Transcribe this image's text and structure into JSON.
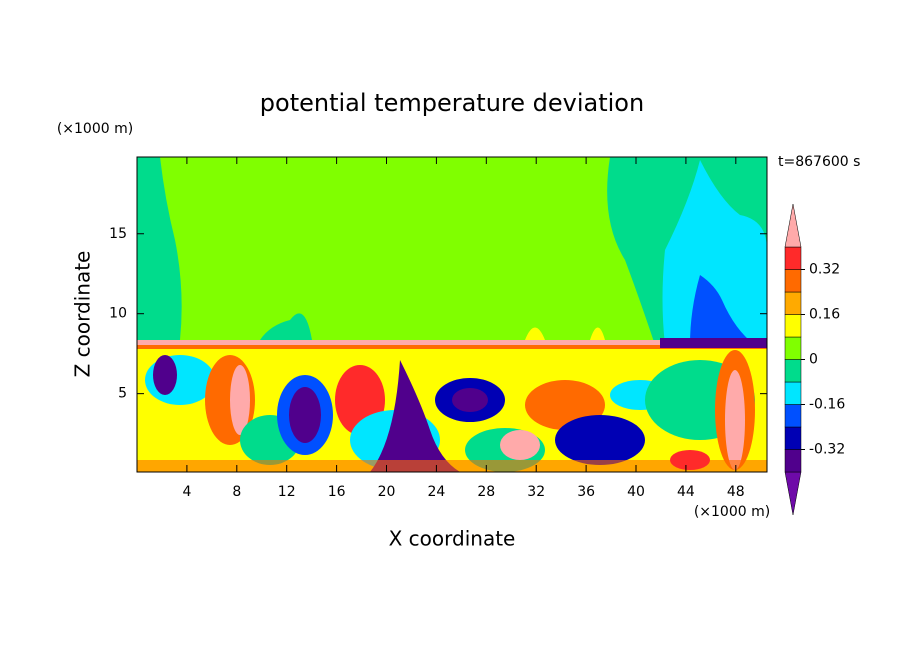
{
  "chart_data": {
    "type": "contour",
    "title": "potential temperature deviation",
    "x_label": "X coordinate",
    "y_label": "Z coordinate",
    "x_unit": "(×1000 m)",
    "y_unit": "(×1000 m)",
    "annotation": "t=867600 s",
    "xlim": [
      0,
      50.5
    ],
    "ylim": [
      0.1,
      19.8
    ],
    "xticks": [
      4,
      8,
      12,
      16,
      20,
      24,
      28,
      32,
      36,
      40,
      44,
      48
    ],
    "yticks": [
      5,
      10,
      15
    ],
    "levels": [
      -0.4,
      -0.32,
      -0.24,
      -0.16,
      -0.08,
      0,
      0.08,
      0.16,
      0.24,
      0.32,
      0.4
    ],
    "colors": [
      "#6e0aa8",
      "#50008c",
      "#0000b4",
      "#0050ff",
      "#00e6ff",
      "#00dc8c",
      "#80ff00",
      "#ffff00",
      "#ffaa00",
      "#ff6a00",
      "#ff2a2a",
      "#ffaaaa"
    ],
    "colorbar_ticks": [
      -0.32,
      -0.16,
      0,
      0.16,
      0.32
    ]
  }
}
